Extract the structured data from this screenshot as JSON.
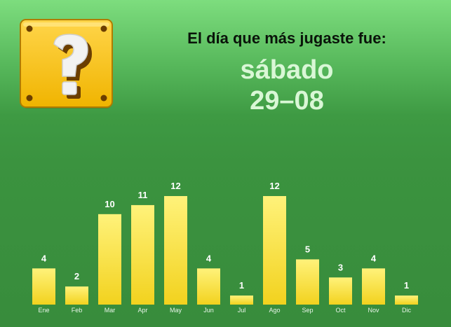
{
  "header": {
    "title": "El día que más jugaste fue:",
    "day_name": "sábado",
    "day_date": "29–08",
    "icon": "question-block-icon"
  },
  "colors": {
    "bar_top": "#fff27a",
    "bar_bottom": "#f2d21e",
    "value_label": "#ffffff",
    "tick_label": "#e8f5e8",
    "block": "#f5c400"
  },
  "chart_data": {
    "type": "bar",
    "title": "",
    "xlabel": "",
    "ylabel": "",
    "categories": [
      "Ene",
      "Feb",
      "Mar",
      "Apr",
      "May",
      "Jun",
      "Jul",
      "Ago",
      "Sep",
      "Oct",
      "Nov",
      "Dic"
    ],
    "values": [
      4,
      2,
      10,
      11,
      12,
      4,
      1,
      12,
      5,
      3,
      4,
      1
    ],
    "ylim": [
      0,
      12
    ],
    "grid": false,
    "legend": "none",
    "data_labels": true
  }
}
